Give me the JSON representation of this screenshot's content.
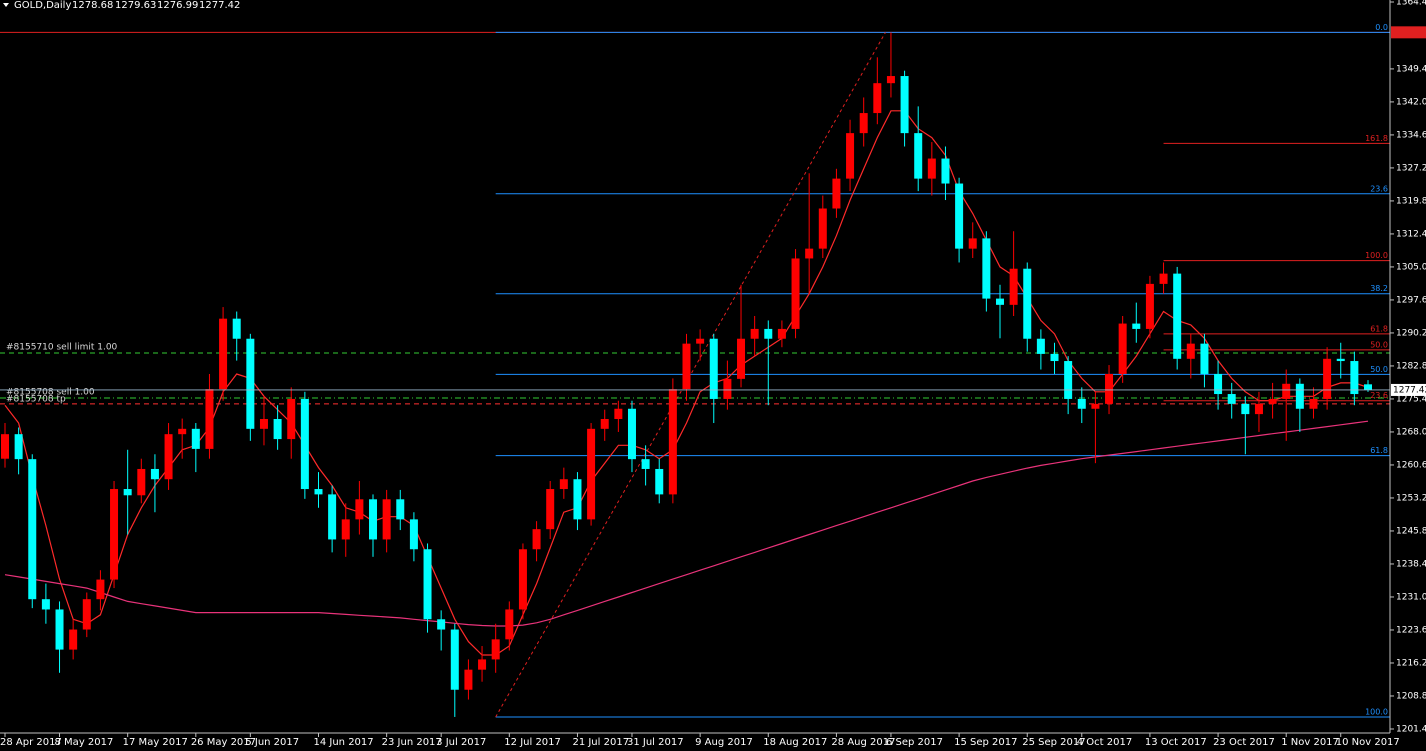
{
  "chart_data": {
    "type": "candlestick",
    "symbol": "GOLD,Daily",
    "bull_color": "#ff0000",
    "bear_color": "#00ffff",
    "categories": [
      "28 Apr 2017",
      null,
      null,
      null,
      "8 May 2017",
      null,
      null,
      null,
      null,
      "17 May 2017",
      null,
      null,
      null,
      null,
      "26 May 2017",
      null,
      null,
      null,
      "5 Jun 2017",
      null,
      null,
      null,
      null,
      "14 Jun 2017",
      null,
      null,
      null,
      null,
      "23 Jun 2017",
      null,
      null,
      null,
      "3 Jul 2017",
      null,
      null,
      null,
      null,
      "12 Jul 2017",
      null,
      null,
      null,
      null,
      "21 Jul 2017",
      null,
      null,
      null,
      "31 Jul 2017",
      null,
      null,
      null,
      null,
      "9 Aug 2017",
      null,
      null,
      null,
      null,
      "18 Aug 2017",
      null,
      null,
      null,
      null,
      "28 Aug 2017",
      null,
      null,
      null,
      "6 Sep 2017",
      null,
      null,
      null,
      null,
      "15 Sep 2017",
      null,
      null,
      null,
      null,
      "25 Sep 2017",
      null,
      null,
      null,
      "4 Oct 2017",
      null,
      null,
      null,
      null,
      "13 Oct 2017",
      null,
      null,
      null,
      null,
      "23 Oct 2017",
      null,
      null,
      null,
      null,
      "1 Nov 2017",
      null,
      null,
      null,
      "10 Nov 2017",
      null,
      null
    ],
    "open": [
      1262.0,
      1267.5,
      1261.9,
      1230.5,
      1228.2,
      1219.2,
      1223.7,
      1230.5,
      1234.9,
      1255.2,
      1253.8,
      1259.7,
      1257.4,
      1267.5,
      1268.7,
      1264.2,
      1277.6,
      1293.4,
      1288.9,
      1268.7,
      1270.9,
      1266.4,
      1275.4,
      1255.2,
      1254.0,
      1243.9,
      1248.4,
      1252.9,
      1243.9,
      1252.9,
      1248.4,
      1241.7,
      1226.0,
      1223.7,
      1210.2,
      1214.7,
      1217.0,
      1221.5,
      1228.2,
      1241.7,
      1246.2,
      1255.2,
      1257.4,
      1248.4,
      1268.7,
      1270.9,
      1273.2,
      1261.9,
      1259.7,
      1254.0,
      1277.6,
      1287.8,
      1288.9,
      1275.4,
      1279.9,
      1288.9,
      1291.1,
      1288.9,
      1291.1,
      1306.9,
      1309.1,
      1318.1,
      1324.8,
      1335.0,
      1339.5,
      1346.2,
      1347.8,
      1335.0,
      1324.8,
      1329.3,
      1323.7,
      1309.1,
      1311.4,
      1297.9,
      1296.5,
      1304.6,
      1288.9,
      1285.5,
      1283.9,
      1275.4,
      1273.2,
      1274.3,
      1281.0,
      1292.3,
      1291.1,
      1301.2,
      1303.5,
      1284.4,
      1287.8,
      1281.0,
      1276.5,
      1274.3,
      1272.0,
      1274.3,
      1275.4,
      1278.8,
      1273.2,
      1275.4,
      1284.4,
      1283.9,
      1278.68
    ],
    "high": [
      1270.0,
      1269.0,
      1263.0,
      1234.0,
      1230.0,
      1226.0,
      1232.0,
      1237.0,
      1257.0,
      1264.0,
      1262.0,
      1263.0,
      1270.0,
      1271.0,
      1270.0,
      1281.0,
      1296.0,
      1295.0,
      1290.0,
      1276.0,
      1274.0,
      1278.0,
      1277.0,
      1259.0,
      1256.0,
      1252.0,
      1257.0,
      1254.0,
      1255.0,
      1255.0,
      1250.0,
      1243.0,
      1228.0,
      1225.0,
      1217.0,
      1220.0,
      1225.0,
      1230.0,
      1243.0,
      1248.0,
      1257.0,
      1260.0,
      1259.0,
      1270.0,
      1273.0,
      1275.0,
      1275.0,
      1265.0,
      1262.0,
      1280.0,
      1290.0,
      1291.0,
      1290.0,
      1284.0,
      1301.0,
      1294.0,
      1293.0,
      1293.0,
      1309.0,
      1326.0,
      1321.0,
      1327.0,
      1338.0,
      1343.0,
      1352.0,
      1357.6,
      1349.0,
      1341.0,
      1333.0,
      1332.0,
      1325.0,
      1315.0,
      1313.0,
      1301.0,
      1313.0,
      1306.0,
      1291.0,
      1288.0,
      1285.0,
      1278.0,
      1277.0,
      1283.0,
      1294.0,
      1297.0,
      1303.0,
      1306.0,
      1305.0,
      1290.0,
      1290.0,
      1284.0,
      1279.0,
      1276.0,
      1277.0,
      1279.0,
      1282.0,
      1280.0,
      1278.0,
      1287.0,
      1288.0,
      1286.0,
      1279.63
    ],
    "low": [
      1260.0,
      1258.5,
      1228.5,
      1225.0,
      1214.0,
      1217.0,
      1222.0,
      1228.0,
      1233.0,
      1245.0,
      1252.0,
      1250.0,
      1255.0,
      1262.0,
      1259.0,
      1262.0,
      1275.0,
      1284.0,
      1266.0,
      1265.0,
      1264.0,
      1262.0,
      1253.0,
      1251.0,
      1241.0,
      1240.0,
      1245.0,
      1240.0,
      1241.0,
      1246.0,
      1239.0,
      1223.0,
      1219.0,
      1204.1,
      1208.0,
      1212.0,
      1214.0,
      1219.0,
      1226.0,
      1239.0,
      1244.0,
      1253.0,
      1246.0,
      1247.0,
      1266.0,
      1268.0,
      1259.0,
      1256.0,
      1252.0,
      1252.0,
      1275.0,
      1284.0,
      1270.0,
      1273.0,
      1278.0,
      1285.0,
      1274.0,
      1287.0,
      1289.0,
      1299.0,
      1307.0,
      1316.0,
      1322.0,
      1332.0,
      1337.0,
      1343.0,
      1332.0,
      1322.0,
      1321.0,
      1320.0,
      1306.0,
      1307.0,
      1295.0,
      1289.0,
      1294.0,
      1286.0,
      1282.0,
      1281.0,
      1272.0,
      1270.0,
      1261.0,
      1272.0,
      1279.0,
      1288.0,
      1289.0,
      1299.0,
      1282.0,
      1280.0,
      1278.0,
      1273.0,
      1271.0,
      1263.0,
      1268.0,
      1271.0,
      1266.0,
      1268.0,
      1271.0,
      1273.0,
      1280.0,
      1274.0,
      1276.99
    ],
    "close": [
      1267.5,
      1261.9,
      1230.5,
      1228.2,
      1219.2,
      1223.7,
      1230.5,
      1234.9,
      1255.2,
      1253.8,
      1259.7,
      1257.4,
      1267.5,
      1268.7,
      1264.2,
      1277.6,
      1293.4,
      1288.9,
      1268.7,
      1270.9,
      1266.4,
      1275.4,
      1255.2,
      1254.0,
      1243.9,
      1248.4,
      1252.9,
      1243.9,
      1252.9,
      1248.4,
      1241.7,
      1226.0,
      1223.7,
      1210.2,
      1214.7,
      1217.0,
      1221.5,
      1228.2,
      1241.7,
      1246.2,
      1255.2,
      1257.4,
      1248.4,
      1268.7,
      1270.9,
      1273.2,
      1261.9,
      1259.7,
      1254.0,
      1277.6,
      1287.8,
      1288.9,
      1275.4,
      1279.9,
      1288.9,
      1291.1,
      1288.9,
      1291.1,
      1306.9,
      1309.1,
      1318.1,
      1324.8,
      1335.0,
      1339.5,
      1346.2,
      1347.8,
      1335.0,
      1324.8,
      1329.3,
      1323.7,
      1309.1,
      1311.4,
      1297.9,
      1296.5,
      1304.6,
      1288.9,
      1285.5,
      1283.9,
      1275.4,
      1273.2,
      1274.3,
      1281.0,
      1292.3,
      1291.1,
      1301.2,
      1303.5,
      1284.4,
      1287.8,
      1281.0,
      1276.5,
      1274.3,
      1272.0,
      1274.3,
      1275.4,
      1278.8,
      1273.2,
      1275.4,
      1284.4,
      1283.9,
      1276.5,
      1277.42
    ],
    "series": [
      {
        "color": "#ff2a2a",
        "values": [
          1274,
          1270,
          1258,
          1247,
          1235,
          1226,
          1225,
          1227,
          1236,
          1245,
          1251,
          1256,
          1260,
          1264,
          1265,
          1269,
          1277,
          1281,
          1280,
          1276,
          1273,
          1270,
          1265,
          1260,
          1256,
          1251,
          1250,
          1248,
          1249,
          1249,
          1247,
          1240,
          1233,
          1226,
          1221,
          1218,
          1218,
          1220,
          1227,
          1234,
          1242,
          1250,
          1251,
          1257,
          1261,
          1265,
          1265,
          1264,
          1262,
          1264,
          1270,
          1277,
          1279,
          1280,
          1283,
          1285,
          1287,
          1289,
          1294,
          1299,
          1305,
          1312,
          1320,
          1327,
          1334,
          1340,
          1340,
          1336,
          1334,
          1330,
          1322,
          1317,
          1311,
          1305,
          1303,
          1298,
          1293,
          1290,
          1284,
          1280,
          1277,
          1277,
          1281,
          1285,
          1290,
          1295,
          1293,
          1292,
          1289,
          1284,
          1280,
          1277,
          1275,
          1275,
          1276,
          1276,
          1276,
          1278,
          1279,
          1279,
          1278
        ]
      },
      {
        "color": "#e8337a",
        "values": [
          1236,
          1235.5,
          1235,
          1234.5,
          1234,
          1233.5,
          1233,
          1232,
          1231,
          1230,
          1229.5,
          1229,
          1228.5,
          1228,
          1227.5,
          1227.5,
          1227.5,
          1227.5,
          1227.5,
          1227.5,
          1227.5,
          1227.5,
          1227.5,
          1227.5,
          1227.3,
          1227.1,
          1226.9,
          1226.7,
          1226.5,
          1226.3,
          1226,
          1225.7,
          1225.4,
          1225.1,
          1224.8,
          1224.6,
          1224.5,
          1224.5,
          1224.7,
          1225.2,
          1226,
          1227,
          1228,
          1229,
          1230,
          1231,
          1232,
          1233,
          1234,
          1235,
          1236,
          1237,
          1238,
          1239,
          1240,
          1241,
          1242,
          1243,
          1244,
          1245,
          1246,
          1247,
          1248,
          1249,
          1250,
          1251,
          1252,
          1253,
          1254,
          1255,
          1256,
          1257,
          1257.8,
          1258.5,
          1259.2,
          1259.9,
          1260.5,
          1261,
          1261.5,
          1262,
          1262.4,
          1262.8,
          1263.2,
          1263.6,
          1264,
          1264.4,
          1264.8,
          1265.2,
          1265.6,
          1266,
          1266.4,
          1266.8,
          1267.2,
          1267.6,
          1268,
          1268.4,
          1268.8,
          1269.2,
          1269.6,
          1270,
          1270.4
        ]
      }
    ],
    "ylim": [
      1200.5,
      1364.85
    ],
    "yticks": [
      {
        "value": 1364.4,
        "label": "1364.40"
      },
      {
        "value": 1349.4,
        "label": "1349.40"
      },
      {
        "value": 1342.0,
        "label": "1342.00"
      },
      {
        "value": 1334.6,
        "label": "1334.60"
      },
      {
        "value": 1327.2,
        "label": "1327.20"
      },
      {
        "value": 1319.8,
        "label": "1319.80"
      },
      {
        "value": 1312.4,
        "label": "1312.40"
      },
      {
        "value": 1305.0,
        "label": "1305.00"
      },
      {
        "value": 1297.6,
        "label": "1297.60"
      },
      {
        "value": 1290.2,
        "label": "1290.20"
      },
      {
        "value": 1282.8,
        "label": "1282.80"
      },
      {
        "value": 1275.4,
        "label": "1275.40"
      },
      {
        "value": 1268.0,
        "label": "1268.00"
      },
      {
        "value": 1260.6,
        "label": "1260.60"
      },
      {
        "value": 1253.2,
        "label": "1253.20"
      },
      {
        "value": 1245.8,
        "label": "1245.80"
      },
      {
        "value": 1238.4,
        "label": "1238.40"
      },
      {
        "value": 1231.0,
        "label": "1231.00"
      },
      {
        "value": 1223.6,
        "label": "1223.60"
      },
      {
        "value": 1216.2,
        "label": "1216.20"
      },
      {
        "value": 1208.8,
        "label": "1208.80"
      },
      {
        "value": 1201.4,
        "label": "1201.40"
      }
    ],
    "max_line": 1357.6,
    "fib_blue": {
      "color": "#1e90ff",
      "levels": [
        {
          "label": "0.0",
          "value": 1357.6
        },
        {
          "label": "23.6",
          "value": 1321.4
        },
        {
          "label": "38.2",
          "value": 1299.0
        },
        {
          "label": "50.0",
          "value": 1280.9
        },
        {
          "label": "61.8",
          "value": 1262.7
        },
        {
          "label": "100.0",
          "value": 1204.1
        }
      ]
    },
    "fib_red": {
      "color": "#e02020",
      "levels": [
        {
          "label": "161.8",
          "value": 1332.7
        },
        {
          "label": "100.0",
          "value": 1306.4
        },
        {
          "label": "61.8",
          "value": 1290.0
        },
        {
          "label": "50.0",
          "value": 1286.4
        },
        {
          "label": "23.6",
          "value": 1275.0
        }
      ]
    },
    "orders": [
      {
        "label": "#8155710 sell limit 1.00",
        "value": 1285.7,
        "color": "#33cc33"
      },
      {
        "label": "#8155708 sell 1.00",
        "value": 1275.6,
        "color": "#33cc33"
      },
      {
        "label": "#8155708 tp",
        "value": 1274.3,
        "color": "#ff3030"
      }
    ]
  }
}
